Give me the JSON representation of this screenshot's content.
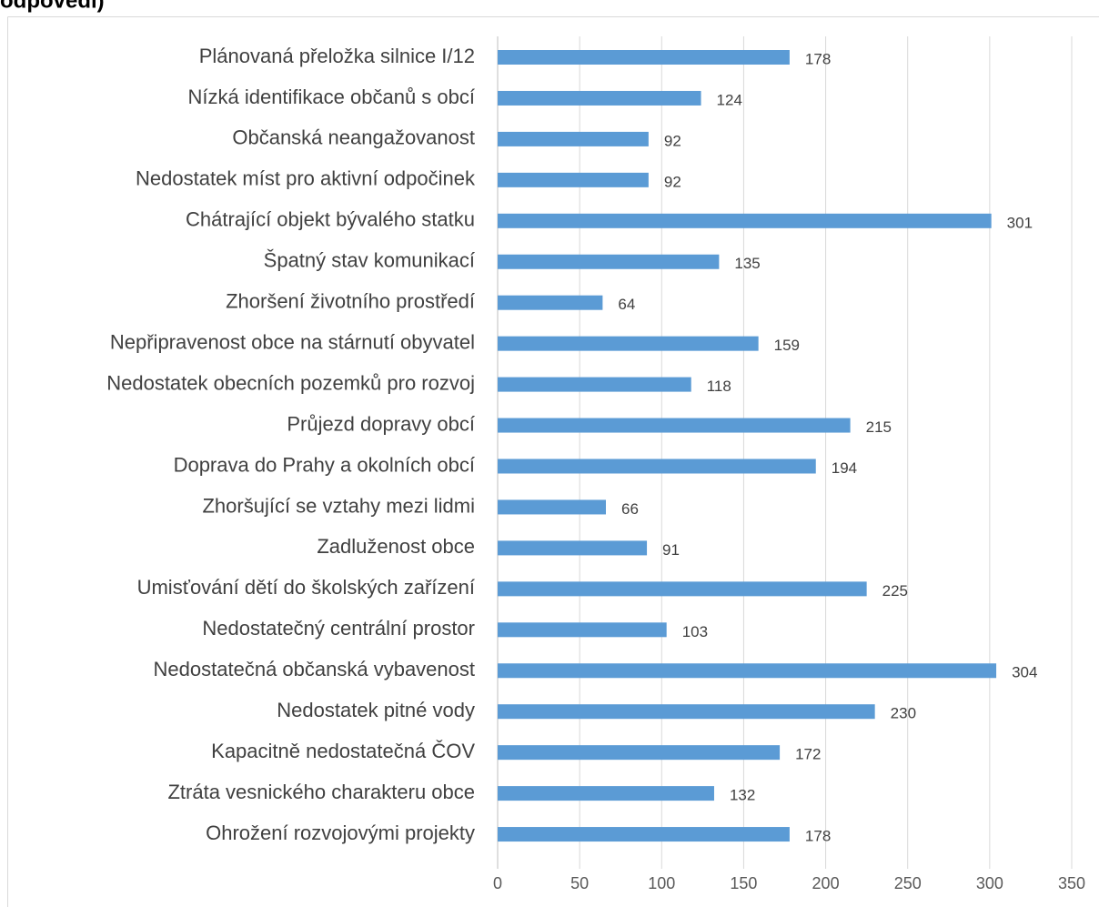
{
  "chart_data": {
    "type": "bar",
    "orientation": "horizontal",
    "title": "odpovědi)",
    "categories": [
      "Plánovaná přeložka silnice I/12",
      "Nízká identifikace občanů s obcí",
      "Občanská neangažovanost",
      "Nedostatek míst pro aktivní odpočinek",
      "Chátrající objekt bývalého statku",
      "Špatný stav komunikací",
      "Zhoršení životního prostředí",
      "Nepřipravenost obce na stárnutí obyvatel",
      "Nedostatek obecních pozemků pro rozvoj",
      "Průjezd dopravy obcí",
      "Doprava do Prahy a okolních obcí",
      "Zhoršující se vztahy mezi lidmi",
      "Zadluženost obce",
      "Umisťování dětí do školských zařízení",
      "Nedostatečný centrální prostor",
      "Nedostatečná občanská vybavenost",
      "Nedostatek pitné vody",
      "Kapacitně nedostatečná ČOV",
      "Ztráta vesnického charakteru obce",
      "Ohrožení rozvojovými projekty"
    ],
    "values": [
      178,
      124,
      92,
      92,
      301,
      135,
      64,
      159,
      118,
      215,
      194,
      66,
      91,
      225,
      103,
      304,
      230,
      172,
      132,
      178
    ],
    "color": "#5b9bd5",
    "xlim": [
      0,
      350
    ],
    "xticks": [
      0,
      50,
      100,
      150,
      200,
      250,
      300,
      350
    ],
    "grid": true
  }
}
